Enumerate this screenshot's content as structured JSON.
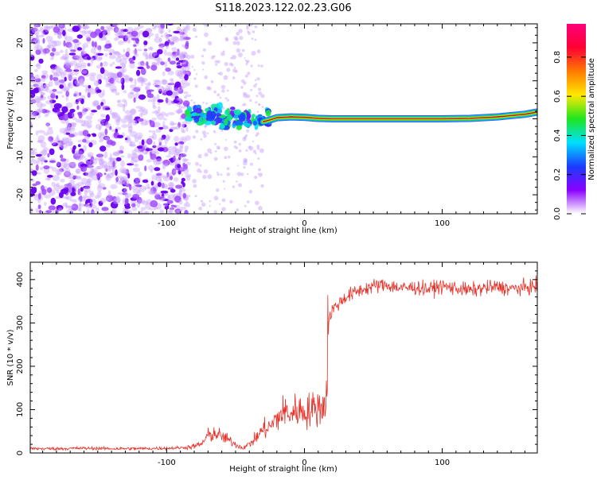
{
  "title": "S118.2023.122.02.23.G06",
  "colorbar_ticks": [
    "0.0",
    "0.2",
    "0.4",
    "0.6",
    "0.8"
  ],
  "chart_data": [
    {
      "type": "heatmap",
      "xlabel": "Height of straight line (km)",
      "ylabel": "Frequency (Hz)",
      "xlim": [
        -199,
        169
      ],
      "ylim": [
        -25,
        25
      ],
      "xticks": [
        -100,
        0,
        100
      ],
      "yticks": [
        -20,
        -10,
        0,
        10,
        20
      ],
      "colorbar": {
        "label": "Normalized spectral amplitude",
        "range": [
          0,
          0.97
        ],
        "ticks": [
          0,
          0.2,
          0.4,
          0.6,
          0.8
        ],
        "colors": [
          "#ffffff",
          "#8a00ff",
          "#1a3dff",
          "#00e0ff",
          "#1ee61e",
          "#ffe800",
          "#ff7a00",
          "#ff0033",
          "#ff007a"
        ]
      },
      "ridge": {
        "x": [
          -30,
          -25,
          -20,
          -10,
          0,
          10,
          20,
          40,
          60,
          80,
          100,
          120,
          140,
          160,
          169
        ],
        "y": [
          -0.8,
          -0.3,
          0.3,
          0.5,
          0.4,
          0.1,
          0.0,
          0.0,
          0.0,
          0.0,
          0.0,
          0.1,
          0.5,
          1.2,
          1.8
        ]
      }
    },
    {
      "type": "line",
      "xlabel": "Height of straight line (km)",
      "ylabel": "SNR (10 * v/v)",
      "xlim": [
        -199,
        169
      ],
      "ylim": [
        0,
        440
      ],
      "xticks": [
        -100,
        0,
        100
      ],
      "yticks": [
        0,
        100,
        200,
        300,
        400
      ],
      "series": [
        {
          "color": "#e8332b",
          "x": [
            -199,
            -180,
            -160,
            -140,
            -120,
            -100,
            -90,
            -82,
            -75,
            -70,
            -65,
            -60,
            -55,
            -50,
            -45,
            -40,
            -35,
            -30,
            -25,
            -20,
            -15,
            -10,
            -5,
            0,
            5,
            10,
            15,
            16,
            17,
            18,
            19,
            20,
            25,
            30,
            40,
            50,
            60,
            70,
            80,
            90,
            100,
            110,
            120,
            130,
            140,
            150,
            160,
            169
          ],
          "y": [
            10,
            10,
            11,
            10,
            10,
            11,
            12,
            14,
            20,
            40,
            45,
            38,
            30,
            20,
            12,
            20,
            35,
            55,
            60,
            80,
            95,
            90,
            100,
            95,
            100,
            105,
            110,
            150,
            270,
            310,
            320,
            330,
            345,
            360,
            375,
            385,
            388,
            380,
            382,
            378,
            385,
            380,
            375,
            380,
            383,
            379,
            381,
            385
          ]
        }
      ]
    }
  ]
}
